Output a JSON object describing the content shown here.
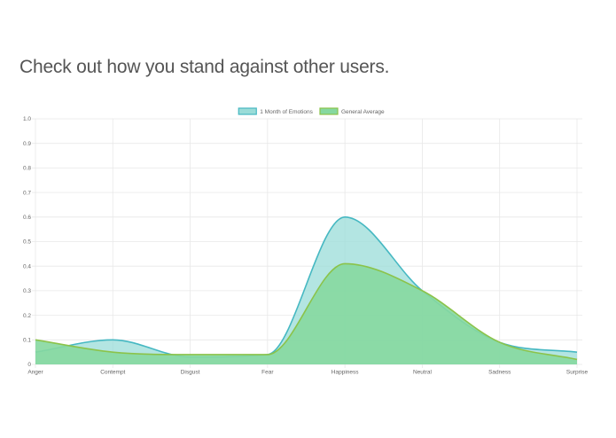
{
  "page": {
    "headline": "Check out how you stand against other users."
  },
  "chart_data": {
    "type": "area",
    "categories": [
      "Anger",
      "Contempt",
      "Disgust",
      "Fear",
      "Happiness",
      "Neutral",
      "Sadness",
      "Surprise"
    ],
    "ylim": [
      0,
      1.0
    ],
    "yticks": [
      "0",
      "0.1",
      "0.2",
      "0.3",
      "0.4",
      "0.5",
      "0.6",
      "0.7",
      "0.8",
      "0.9",
      "1.0"
    ],
    "grid": true,
    "legend_position": "top",
    "series": [
      {
        "name": "1 Month of Emotions",
        "values": [
          0.05,
          0.1,
          0.03,
          0.04,
          0.6,
          0.3,
          0.09,
          0.05
        ],
        "fill": "#9adcd8",
        "stroke": "#46b8c2"
      },
      {
        "name": "General Average",
        "values": [
          0.1,
          0.05,
          0.04,
          0.04,
          0.41,
          0.3,
          0.09,
          0.02
        ],
        "fill": "#86d8a0",
        "stroke": "#8bc34a"
      }
    ]
  }
}
